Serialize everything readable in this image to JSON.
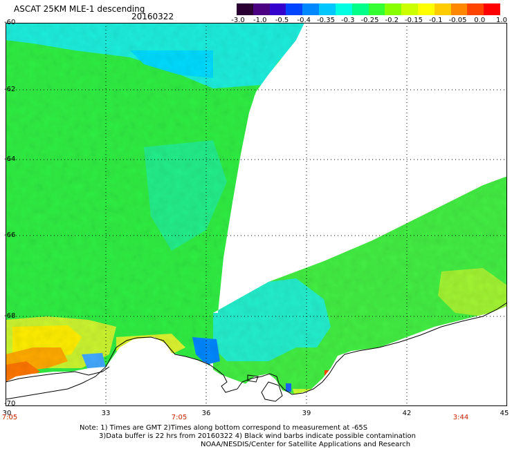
{
  "header": {
    "title": "ASCAT 25KM MLE-1 descending",
    "date": "20160322"
  },
  "colorbar": {
    "labels": [
      "-3.0",
      "-1.0",
      "-0.5",
      "-0.4",
      "-0.35",
      "-0.3",
      "-0.25",
      "-0.2",
      "-0.15",
      "-0.1",
      "-0.05",
      "0.0",
      "1.0"
    ],
    "colors": [
      "#2a0033",
      "#4a0080",
      "#3300cc",
      "#0044ff",
      "#0088ff",
      "#00c8ff",
      "#00ffe0",
      "#00ff88",
      "#33ff33",
      "#88ff00",
      "#ccff00",
      "#ffff00",
      "#ffcc00",
      "#ff8800",
      "#ff4400",
      "#ff0000"
    ]
  },
  "axes": {
    "y_labels": [
      "-60",
      "-62",
      "-64",
      "-66",
      "-68",
      "-70"
    ],
    "x_labels": [
      "30",
      "33",
      "36",
      "39",
      "42",
      "45"
    ],
    "time_labels": [
      "7:05",
      "7:05",
      "3:44"
    ]
  },
  "note": {
    "line1": "Note: 1) Times are GMT 2)Times along bottom correspond to measurement at -65S",
    "line2": "3)Data buffer is 22 hrs from 20160322 4) Black wind barbs indicate possible contamination",
    "line3": "NOAA/NESDIS/Center for Satellite Applications and Research"
  }
}
